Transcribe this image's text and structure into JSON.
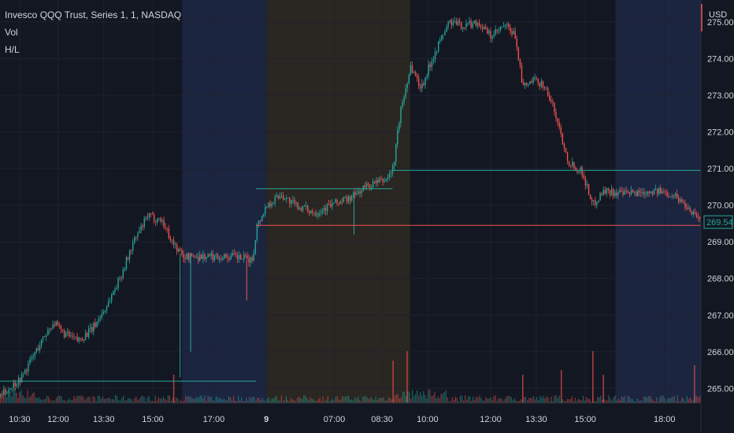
{
  "legend": {
    "symbol": "Invesco QQQ Trust, Series 1, 1, NASDAQ",
    "vol": "Vol",
    "hl": "H/L"
  },
  "currency": "USD",
  "last_price": "269.54",
  "colors": {
    "background": "#131722",
    "up": "#26a69a",
    "down": "#ef5350",
    "premarket_band": "#2a2621",
    "postmarket_band": "#1b2540",
    "grid": "#1e2230",
    "high_line": "#26a69a",
    "low_line": "#ef5350"
  },
  "chart_data": {
    "type": "candlestick",
    "title": "Invesco QQQ Trust, Series 1, 1, NASDAQ",
    "y_axis": {
      "unit": "USD",
      "range": [
        264.6,
        275.6
      ],
      "ticks": [
        265.0,
        266.0,
        267.0,
        268.0,
        269.0,
        270.0,
        271.0,
        272.0,
        273.0,
        274.0,
        275.0
      ]
    },
    "x_ticks": [
      "10:30",
      "12:00",
      "13:30",
      "15:00",
      "17:00",
      "9",
      "07:00",
      "08:30",
      "10:00",
      "12:00",
      "13:30",
      "15:00",
      "18:00"
    ],
    "sessions": [
      {
        "name": "day1-regular",
        "from": "09:30",
        "to": "16:00"
      },
      {
        "name": "day1-post",
        "from": "16:00",
        "to": "20:00"
      },
      {
        "name": "day2-pre",
        "from": "04:00",
        "to": "09:30"
      },
      {
        "name": "day2-regular",
        "from": "09:30",
        "to": "16:00"
      },
      {
        "name": "day2-post",
        "from": "16:00",
        "to": "20:00"
      }
    ],
    "path_keypoints": [
      {
        "x": 0.0,
        "y": 264.8
      },
      {
        "x": 0.03,
        "y": 265.3
      },
      {
        "x": 0.05,
        "y": 266.0
      },
      {
        "x": 0.065,
        "y": 266.5
      },
      {
        "x": 0.075,
        "y": 266.8
      },
      {
        "x": 0.09,
        "y": 266.5
      },
      {
        "x": 0.11,
        "y": 266.3
      },
      {
        "x": 0.13,
        "y": 266.6
      },
      {
        "x": 0.15,
        "y": 267.2
      },
      {
        "x": 0.17,
        "y": 268.0
      },
      {
        "x": 0.19,
        "y": 269.0
      },
      {
        "x": 0.21,
        "y": 269.7
      },
      {
        "x": 0.23,
        "y": 269.6
      },
      {
        "x": 0.245,
        "y": 269.0
      },
      {
        "x": 0.26,
        "y": 268.6
      },
      {
        "x": 0.28,
        "y": 268.6
      },
      {
        "x": 0.33,
        "y": 268.6
      },
      {
        "x": 0.36,
        "y": 268.5
      },
      {
        "x": 0.365,
        "y": 269.4
      },
      {
        "x": 0.38,
        "y": 270.0
      },
      {
        "x": 0.4,
        "y": 270.3
      },
      {
        "x": 0.42,
        "y": 270.0
      },
      {
        "x": 0.45,
        "y": 269.8
      },
      {
        "x": 0.47,
        "y": 270.0
      },
      {
        "x": 0.5,
        "y": 270.2
      },
      {
        "x": 0.52,
        "y": 270.5
      },
      {
        "x": 0.55,
        "y": 270.7
      },
      {
        "x": 0.56,
        "y": 271.0
      },
      {
        "x": 0.57,
        "y": 272.5
      },
      {
        "x": 0.585,
        "y": 273.8
      },
      {
        "x": 0.6,
        "y": 273.2
      },
      {
        "x": 0.62,
        "y": 274.2
      },
      {
        "x": 0.64,
        "y": 275.0
      },
      {
        "x": 0.66,
        "y": 274.9
      },
      {
        "x": 0.68,
        "y": 275.0
      },
      {
        "x": 0.7,
        "y": 274.6
      },
      {
        "x": 0.72,
        "y": 274.9
      },
      {
        "x": 0.735,
        "y": 274.6
      },
      {
        "x": 0.745,
        "y": 273.2
      },
      {
        "x": 0.76,
        "y": 273.4
      },
      {
        "x": 0.775,
        "y": 273.3
      },
      {
        "x": 0.79,
        "y": 272.6
      },
      {
        "x": 0.81,
        "y": 271.2
      },
      {
        "x": 0.83,
        "y": 270.9
      },
      {
        "x": 0.845,
        "y": 270.0
      },
      {
        "x": 0.86,
        "y": 270.4
      },
      {
        "x": 0.89,
        "y": 270.3
      },
      {
        "x": 0.93,
        "y": 270.4
      },
      {
        "x": 0.96,
        "y": 270.3
      },
      {
        "x": 1.0,
        "y": 269.6
      }
    ],
    "spikes": [
      {
        "x": 0.257,
        "y": 265.3,
        "dir": "down"
      },
      {
        "x": 0.272,
        "y": 266.0,
        "dir": "down"
      },
      {
        "x": 0.352,
        "y": 267.4,
        "dir": "down"
      },
      {
        "x": 0.505,
        "y": 269.2,
        "dir": "down"
      }
    ],
    "levels": [
      {
        "name": "day1-low",
        "y": 265.2,
        "color": "up",
        "x_from": 0.0,
        "x_to": 0.365
      },
      {
        "name": "pre-high",
        "y": 270.45,
        "color": "up",
        "x_from": 0.365,
        "x_to": 0.56
      },
      {
        "name": "day2-open",
        "y": 270.95,
        "color": "up",
        "x_from": 0.56,
        "x_to": 1.0
      },
      {
        "name": "prev-close",
        "y": 269.45,
        "color": "down",
        "x_from": 0.365,
        "x_to": 1.0
      }
    ],
    "volume_spikes": [
      {
        "x": 0.247,
        "v": 0.3
      },
      {
        "x": 0.56,
        "v": 0.45
      },
      {
        "x": 0.58,
        "v": 0.55
      },
      {
        "x": 0.745,
        "v": 0.3
      },
      {
        "x": 0.8,
        "v": 0.35
      },
      {
        "x": 0.845,
        "v": 0.55
      },
      {
        "x": 0.86,
        "v": 0.3
      },
      {
        "x": 0.99,
        "v": 0.4
      }
    ]
  }
}
